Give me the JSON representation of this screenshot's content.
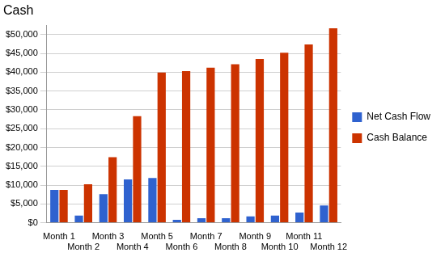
{
  "chart_data": {
    "type": "bar",
    "title": "Cash",
    "categories": [
      "Month 1",
      "Month 2",
      "Month 3",
      "Month 4",
      "Month 5",
      "Month 6",
      "Month 7",
      "Month 8",
      "Month 9",
      "Month 10",
      "Month 11",
      "Month 12"
    ],
    "series": [
      {
        "name": "Net Cash Flow",
        "color": "#2f62cf",
        "values": [
          8700,
          1900,
          7600,
          11500,
          11900,
          800,
          1200,
          1200,
          1700,
          1900,
          2700,
          4600
        ]
      },
      {
        "name": "Cash Balance",
        "color": "#cc3300",
        "values": [
          8700,
          10200,
          17400,
          28300,
          39900,
          40300,
          41200,
          42100,
          43500,
          45200,
          47400,
          51700
        ]
      }
    ],
    "ylim": [
      0,
      52500
    ],
    "yticks": [
      {
        "value": 0,
        "label": "$0"
      },
      {
        "value": 5000,
        "label": "$5,000"
      },
      {
        "value": 10000,
        "label": "$10,000"
      },
      {
        "value": 15000,
        "label": "$15,000"
      },
      {
        "value": 20000,
        "label": "$20,000"
      },
      {
        "value": 25000,
        "label": "$25,000"
      },
      {
        "value": 30000,
        "label": "$30,000"
      },
      {
        "value": 35000,
        "label": "$35,000"
      },
      {
        "value": 40000,
        "label": "$40,000"
      },
      {
        "value": 45000,
        "label": "$45,000"
      },
      {
        "value": 50000,
        "label": "$50,000"
      }
    ],
    "grid": true,
    "legend": "right"
  }
}
